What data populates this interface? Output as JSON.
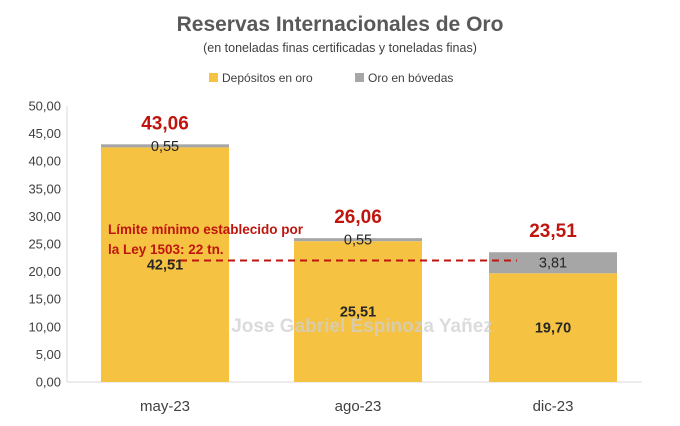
{
  "chart_data": {
    "type": "bar",
    "stacked": true,
    "title": "Reservas Internacionales de Oro",
    "subtitle": "(en toneladas finas certificadas y toneladas finas)",
    "categories": [
      "may-23",
      "ago-23",
      "dic-23"
    ],
    "series": [
      {
        "name": "Depósitos en oro",
        "color": "#f5c242",
        "values": [
          42.51,
          25.51,
          19.7
        ],
        "labels": [
          "42,51",
          "25,51",
          "19,70"
        ]
      },
      {
        "name": "Oro en bóvedas",
        "color": "#a6a6a6",
        "values": [
          0.55,
          0.55,
          3.81
        ],
        "labels": [
          "0,55",
          "0,55",
          "3,81"
        ]
      }
    ],
    "totals": [
      43.06,
      26.06,
      23.51
    ],
    "total_labels": [
      "43,06",
      "26,06",
      "23,51"
    ],
    "ylim": [
      0,
      50
    ],
    "ytick_labels": [
      "0,00",
      "5,00",
      "10,00",
      "15,00",
      "20,00",
      "25,00",
      "30,00",
      "35,00",
      "40,00",
      "45,00",
      "50,00"
    ],
    "legend_position": "top-center",
    "grid": false,
    "reference_line": {
      "value": 22,
      "color": "#c0150e",
      "style": "dashed",
      "label_lines": [
        "Límite mínimo establecido por",
        "la Ley 1503: 22 tn."
      ]
    },
    "watermark": "Jose Gabriel Espinoza Yañez",
    "total_label_color": "#c0150e"
  }
}
